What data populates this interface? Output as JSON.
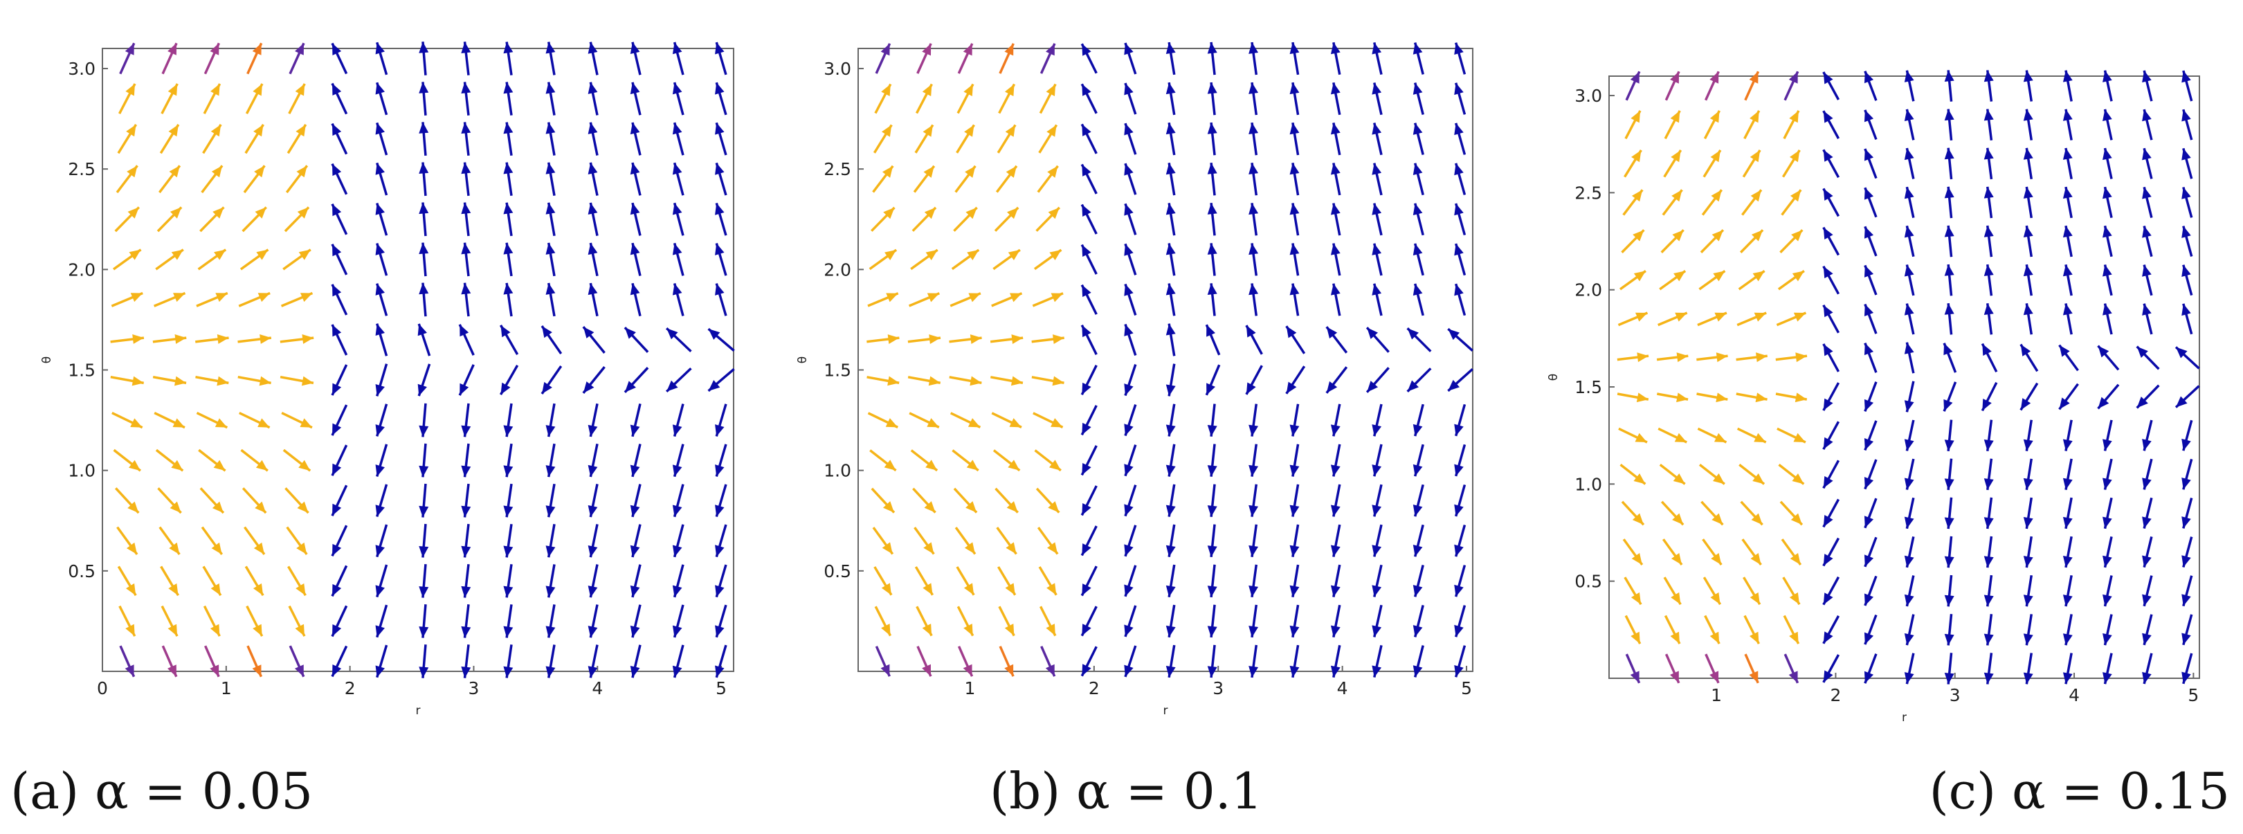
{
  "chart_data": [
    {
      "type": "vector-field",
      "caption": "(a) α = 0.05",
      "xlabel": "r",
      "ylabel": "θ",
      "xlim": [
        0,
        5.1
      ],
      "ylim": [
        0,
        3.1
      ],
      "xticks": [
        "0",
        "1",
        "2",
        "3",
        "4",
        "5"
      ],
      "xtick_values": [
        0,
        1,
        2,
        3,
        4,
        5
      ],
      "yticks": [
        "0.5",
        "1.0",
        "1.5",
        "2.0",
        "2.5",
        "3.0"
      ],
      "ytick_values": [
        0.5,
        1.0,
        1.5,
        2.0,
        2.5,
        3.0
      ],
      "alpha": 0.05,
      "grid": false
    },
    {
      "type": "vector-field",
      "caption": "(b) α = 0.1",
      "xlabel": "r",
      "ylabel": "θ",
      "xlim": [
        0.1,
        5.05
      ],
      "ylim": [
        0,
        3.1
      ],
      "xticks": [
        "1",
        "2",
        "3",
        "4",
        "5"
      ],
      "xtick_values": [
        1,
        2,
        3,
        4,
        5
      ],
      "yticks": [
        "0.5",
        "1.0",
        "1.5",
        "2.0",
        "2.5",
        "3.0"
      ],
      "ytick_values": [
        0.5,
        1.0,
        1.5,
        2.0,
        2.5,
        3.0
      ],
      "alpha": 0.1,
      "grid": false
    },
    {
      "type": "vector-field",
      "caption": "(c) α = 0.15",
      "xlabel": "r",
      "ylabel": "θ",
      "xlim": [
        0.1,
        5.05
      ],
      "ylim": [
        0,
        3.1
      ],
      "xticks": [
        "1",
        "2",
        "3",
        "4",
        "5"
      ],
      "xtick_values": [
        1,
        2,
        3,
        4,
        5
      ],
      "yticks": [
        "0.5",
        "1.0",
        "1.5",
        "2.0",
        "2.5",
        "3.0"
      ],
      "ytick_values": [
        0.5,
        1.0,
        1.5,
        2.0,
        2.5,
        3.0
      ],
      "alpha": 0.15,
      "grid": false
    }
  ],
  "colors": {
    "blue": "#0a0aa8",
    "yellow": "#f5b418",
    "orange": "#f07a1e",
    "magenta": "#a03c8c",
    "purple": "#5a28a0"
  }
}
